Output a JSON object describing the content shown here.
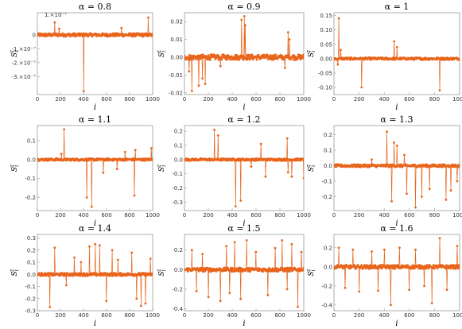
{
  "colors": {
    "series": "#e8651c",
    "frame": "#9a9a9a",
    "zero_line": "#e8651c",
    "background": "#ffffff"
  },
  "chart_data": [
    {
      "type": "scatter",
      "title": "α = 0.8",
      "xlabel": "i",
      "ylabel": "S_i^z",
      "xlim": [
        0,
        1000
      ],
      "ylim": [
        -4.3e-07,
        1.6e-07
      ],
      "xticks": [
        "0",
        "200",
        "400",
        "600",
        "800",
        "1000"
      ],
      "yticks": [
        {
          "value": 0,
          "label": "0"
        },
        {
          "value": -1e-07,
          "label": "-1.×10⁻⁷"
        },
        {
          "value": -2e-07,
          "label": "-2.×10⁻⁷"
        },
        {
          "value": -3e-07,
          "label": "-3.×10⁻⁷"
        }
      ],
      "ytop_label": "1.×10⁻⁷",
      "noise": 1.2e-08,
      "spikes": [
        {
          "x": 150,
          "y": 9e-08
        },
        {
          "x": 400,
          "y": -4.05e-07
        },
        {
          "x": 960,
          "y": 1.25e-07
        },
        {
          "x": 190,
          "y": 4.5e-08
        },
        {
          "x": 730,
          "y": 5e-08
        }
      ]
    },
    {
      "type": "scatter",
      "title": "α = 0.9",
      "xlabel": "i",
      "ylabel": "S_i^z",
      "xlim": [
        0,
        1000
      ],
      "ylim": [
        -0.021,
        0.025
      ],
      "xticks": [
        "0",
        "200",
        "400",
        "600",
        "800",
        "1000"
      ],
      "yticks": [
        {
          "value": 0.02,
          "label": "0.02"
        },
        {
          "value": 0.01,
          "label": "0.01"
        },
        {
          "value": 0,
          "label": "0.00"
        },
        {
          "value": -0.01,
          "label": "-0.01"
        },
        {
          "value": -0.02,
          "label": "-0.02"
        }
      ],
      "noise": 0.0015,
      "spikes": [
        {
          "x": 60,
          "y": -0.019
        },
        {
          "x": 120,
          "y": -0.016
        },
        {
          "x": 150,
          "y": -0.012
        },
        {
          "x": 175,
          "y": -0.015
        },
        {
          "x": 480,
          "y": 0.021
        },
        {
          "x": 500,
          "y": 0.023
        },
        {
          "x": 510,
          "y": 0.018
        },
        {
          "x": 870,
          "y": 0.014
        },
        {
          "x": 880,
          "y": 0.01
        },
        {
          "x": 40,
          "y": -0.008
        },
        {
          "x": 840,
          "y": -0.006
        },
        {
          "x": 300,
          "y": -0.005
        }
      ]
    },
    {
      "type": "scatter",
      "title": "α = 1",
      "xlabel": "i",
      "ylabel": "S_i^z",
      "xlim": [
        0,
        1000
      ],
      "ylim": [
        -0.125,
        0.16
      ],
      "xticks": [
        "0",
        "200",
        "400",
        "600",
        "800",
        "1000"
      ],
      "yticks": [
        {
          "value": 0.15,
          "label": "0.15"
        },
        {
          "value": 0.1,
          "label": "0.10"
        },
        {
          "value": 0.05,
          "label": "0.05"
        },
        {
          "value": 0,
          "label": "0.00"
        },
        {
          "value": -0.05,
          "label": "-0.05"
        },
        {
          "value": -0.1,
          "label": "-0.10"
        }
      ],
      "noise": 0.004,
      "spikes": [
        {
          "x": 40,
          "y": 0.14
        },
        {
          "x": 220,
          "y": -0.1
        },
        {
          "x": 480,
          "y": 0.06
        },
        {
          "x": 500,
          "y": 0.04
        },
        {
          "x": 840,
          "y": -0.11
        },
        {
          "x": 55,
          "y": 0.03
        },
        {
          "x": 30,
          "y": -0.02
        }
      ]
    },
    {
      "type": "scatter",
      "title": "α = 1.1",
      "xlabel": "i",
      "ylabel": "S_i^z",
      "xlim": [
        0,
        1000
      ],
      "ylim": [
        -0.27,
        0.18
      ],
      "xticks": [
        "0",
        "200",
        "400",
        "600",
        "800",
        "1000"
      ],
      "yticks": [
        {
          "value": 0.1,
          "label": "0.1"
        },
        {
          "value": 0,
          "label": "0.0"
        },
        {
          "value": -0.1,
          "label": "-0.1"
        },
        {
          "value": -0.2,
          "label": "-0.2"
        }
      ],
      "noise": 0.006,
      "spikes": [
        {
          "x": 230,
          "y": 0.16
        },
        {
          "x": 430,
          "y": -0.2
        },
        {
          "x": 470,
          "y": -0.25
        },
        {
          "x": 840,
          "y": -0.19
        },
        {
          "x": 570,
          "y": -0.07
        },
        {
          "x": 690,
          "y": -0.05
        },
        {
          "x": 850,
          "y": 0.05
        },
        {
          "x": 990,
          "y": 0.06
        },
        {
          "x": 210,
          "y": 0.03
        },
        {
          "x": 760,
          "y": 0.04
        }
      ]
    },
    {
      "type": "scatter",
      "title": "α = 1.2",
      "xlabel": "i",
      "ylabel": "S_i^z",
      "xlim": [
        0,
        1000
      ],
      "ylim": [
        -0.36,
        0.24
      ],
      "xticks": [
        "0",
        "200",
        "400",
        "600",
        "800",
        "1000"
      ],
      "yticks": [
        {
          "value": 0.2,
          "label": "0.2"
        },
        {
          "value": 0.1,
          "label": "0.1"
        },
        {
          "value": 0,
          "label": "0.0"
        },
        {
          "value": -0.1,
          "label": "-0.1"
        },
        {
          "value": -0.2,
          "label": "-0.2"
        },
        {
          "value": -0.3,
          "label": "-0.3"
        }
      ],
      "noise": 0.008,
      "spikes": [
        {
          "x": 250,
          "y": 0.21
        },
        {
          "x": 280,
          "y": 0.17
        },
        {
          "x": 430,
          "y": -0.33
        },
        {
          "x": 470,
          "y": -0.29
        },
        {
          "x": 640,
          "y": 0.11
        },
        {
          "x": 680,
          "y": -0.12
        },
        {
          "x": 860,
          "y": 0.15
        },
        {
          "x": 870,
          "y": -0.09
        },
        {
          "x": 900,
          "y": -0.12
        },
        {
          "x": 1000,
          "y": -0.13
        },
        {
          "x": 560,
          "y": -0.05
        }
      ]
    },
    {
      "type": "scatter",
      "title": "α = 1.3",
      "xlabel": "i",
      "ylabel": "S_i^z",
      "xlim": [
        0,
        1000
      ],
      "ylim": [
        -0.29,
        0.26
      ],
      "xticks": [
        "0",
        "200",
        "400",
        "600",
        "800",
        "1000"
      ],
      "yticks": [
        {
          "value": 0.2,
          "label": "0.2"
        },
        {
          "value": 0.1,
          "label": "0.1"
        },
        {
          "value": 0,
          "label": "0.0"
        },
        {
          "value": -0.1,
          "label": "-0.1"
        },
        {
          "value": -0.2,
          "label": "-0.2"
        }
      ],
      "noise": 0.009,
      "spikes": [
        {
          "x": 420,
          "y": 0.22
        },
        {
          "x": 480,
          "y": 0.15
        },
        {
          "x": 500,
          "y": 0.13
        },
        {
          "x": 560,
          "y": 0.07
        },
        {
          "x": 460,
          "y": -0.23
        },
        {
          "x": 580,
          "y": -0.18
        },
        {
          "x": 650,
          "y": -0.27
        },
        {
          "x": 700,
          "y": -0.2
        },
        {
          "x": 760,
          "y": -0.15
        },
        {
          "x": 890,
          "y": -0.22
        },
        {
          "x": 930,
          "y": -0.16
        },
        {
          "x": 980,
          "y": -0.1
        },
        {
          "x": 300,
          "y": 0.04
        }
      ]
    },
    {
      "type": "scatter",
      "title": "α = 1.4",
      "xlabel": "i",
      "ylabel": "S_i^z",
      "xlim": [
        0,
        1000
      ],
      "ylim": [
        -0.3,
        0.33
      ],
      "xticks": [
        "0",
        "200",
        "400",
        "600",
        "800",
        "1000"
      ],
      "yticks": [
        {
          "value": 0.3,
          "label": "0.3"
        },
        {
          "value": 0.2,
          "label": "0.2"
        },
        {
          "value": 0.1,
          "label": "0.1"
        },
        {
          "value": 0,
          "label": "0.0"
        },
        {
          "value": -0.1,
          "label": "-0.1"
        },
        {
          "value": -0.2,
          "label": "-0.2"
        },
        {
          "value": -0.3,
          "label": "-0.3"
        }
      ],
      "noise": 0.012,
      "spikes": [
        {
          "x": 110,
          "y": -0.27
        },
        {
          "x": 150,
          "y": 0.22
        },
        {
          "x": 320,
          "y": 0.14
        },
        {
          "x": 450,
          "y": 0.23
        },
        {
          "x": 500,
          "y": 0.25
        },
        {
          "x": 540,
          "y": 0.24
        },
        {
          "x": 600,
          "y": -0.22
        },
        {
          "x": 650,
          "y": 0.2
        },
        {
          "x": 700,
          "y": 0.12
        },
        {
          "x": 820,
          "y": 0.18
        },
        {
          "x": 860,
          "y": -0.2
        },
        {
          "x": 900,
          "y": -0.26
        },
        {
          "x": 940,
          "y": -0.24
        },
        {
          "x": 980,
          "y": 0.13
        },
        {
          "x": 250,
          "y": -0.09
        },
        {
          "x": 380,
          "y": 0.1
        }
      ]
    },
    {
      "type": "scatter",
      "title": "α = 1.5",
      "xlabel": "i",
      "ylabel": "S_i^z",
      "xlim": [
        0,
        1000
      ],
      "ylim": [
        -0.42,
        0.36
      ],
      "xticks": [
        "0",
        "200",
        "400",
        "600",
        "800",
        "1000"
      ],
      "yticks": [
        {
          "value": 0.2,
          "label": "0.2"
        },
        {
          "value": 0,
          "label": "0.0"
        },
        {
          "value": -0.2,
          "label": "-0.2"
        },
        {
          "value": -0.4,
          "label": "-0.4"
        }
      ],
      "noise": 0.02,
      "spikes": [
        {
          "x": 60,
          "y": 0.2
        },
        {
          "x": 100,
          "y": -0.22
        },
        {
          "x": 150,
          "y": 0.16
        },
        {
          "x": 200,
          "y": -0.28
        },
        {
          "x": 300,
          "y": -0.32
        },
        {
          "x": 350,
          "y": 0.24
        },
        {
          "x": 380,
          "y": -0.24
        },
        {
          "x": 420,
          "y": 0.28
        },
        {
          "x": 470,
          "y": -0.3
        },
        {
          "x": 520,
          "y": 0.3
        },
        {
          "x": 600,
          "y": 0.18
        },
        {
          "x": 700,
          "y": -0.26
        },
        {
          "x": 760,
          "y": 0.22
        },
        {
          "x": 820,
          "y": 0.3
        },
        {
          "x": 860,
          "y": -0.2
        },
        {
          "x": 900,
          "y": 0.26
        },
        {
          "x": 950,
          "y": -0.38
        },
        {
          "x": 980,
          "y": 0.18
        }
      ]
    },
    {
      "type": "scatter",
      "title": "α = 1.6",
      "xlabel": "i",
      "ylabel": "S_i^z",
      "xlim": [
        0,
        1000
      ],
      "ylim": [
        -0.46,
        0.34
      ],
      "xticks": [
        "0",
        "200",
        "400",
        "600",
        "800",
        "1000"
      ],
      "yticks": [
        {
          "value": 0.2,
          "label": "0.2"
        },
        {
          "value": 0,
          "label": "0.0"
        },
        {
          "value": -0.2,
          "label": "-0.2"
        },
        {
          "value": -0.4,
          "label": "-0.4"
        }
      ],
      "noise": 0.02,
      "spikes": [
        {
          "x": 40,
          "y": 0.2
        },
        {
          "x": 90,
          "y": -0.22
        },
        {
          "x": 150,
          "y": 0.18
        },
        {
          "x": 200,
          "y": -0.26
        },
        {
          "x": 300,
          "y": 0.16
        },
        {
          "x": 350,
          "y": -0.25
        },
        {
          "x": 400,
          "y": 0.18
        },
        {
          "x": 450,
          "y": -0.4
        },
        {
          "x": 520,
          "y": 0.2
        },
        {
          "x": 600,
          "y": -0.24
        },
        {
          "x": 650,
          "y": 0.18
        },
        {
          "x": 720,
          "y": -0.2
        },
        {
          "x": 780,
          "y": -0.38
        },
        {
          "x": 840,
          "y": 0.3
        },
        {
          "x": 900,
          "y": -0.24
        },
        {
          "x": 980,
          "y": 0.22
        }
      ]
    }
  ]
}
